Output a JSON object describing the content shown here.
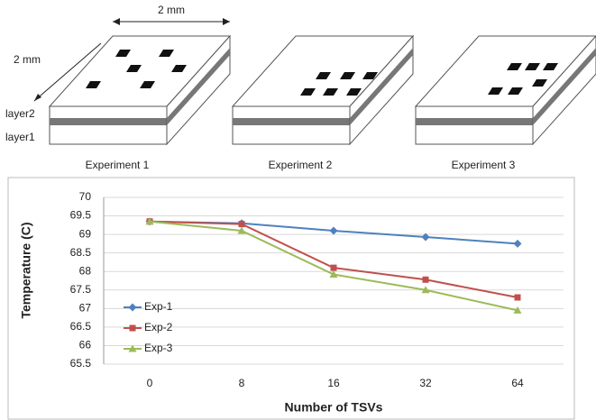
{
  "diagram": {
    "dimension_top": "2 mm",
    "dimension_side": "2 mm",
    "layers": [
      "layer2",
      "layer1"
    ],
    "experiments": [
      "Experiment 1",
      "Experiment 2",
      "Experiment 3"
    ]
  },
  "chart_data": {
    "type": "line",
    "x_label": "Number of TSVs",
    "y_label": "Temperature (C)",
    "categories": [
      "0",
      "8",
      "16",
      "32",
      "64"
    ],
    "series": [
      {
        "name": "Exp-1",
        "color": "#4f81bd",
        "marker": "diamond",
        "values": [
          69.35,
          69.3,
          69.1,
          68.93,
          68.75
        ]
      },
      {
        "name": "Exp-2",
        "color": "#c0504d",
        "marker": "square",
        "values": [
          69.35,
          69.28,
          68.1,
          67.78,
          67.3
        ]
      },
      {
        "name": "Exp-3",
        "color": "#9bbb59",
        "marker": "triangle",
        "values": [
          69.35,
          69.1,
          67.92,
          67.5,
          66.95
        ]
      }
    ],
    "ylim": [
      65.5,
      70
    ],
    "yticks": [
      65.5,
      66,
      66.5,
      67,
      67.5,
      68,
      68.5,
      69,
      69.5,
      70
    ],
    "grid": true,
    "legend": "left"
  }
}
